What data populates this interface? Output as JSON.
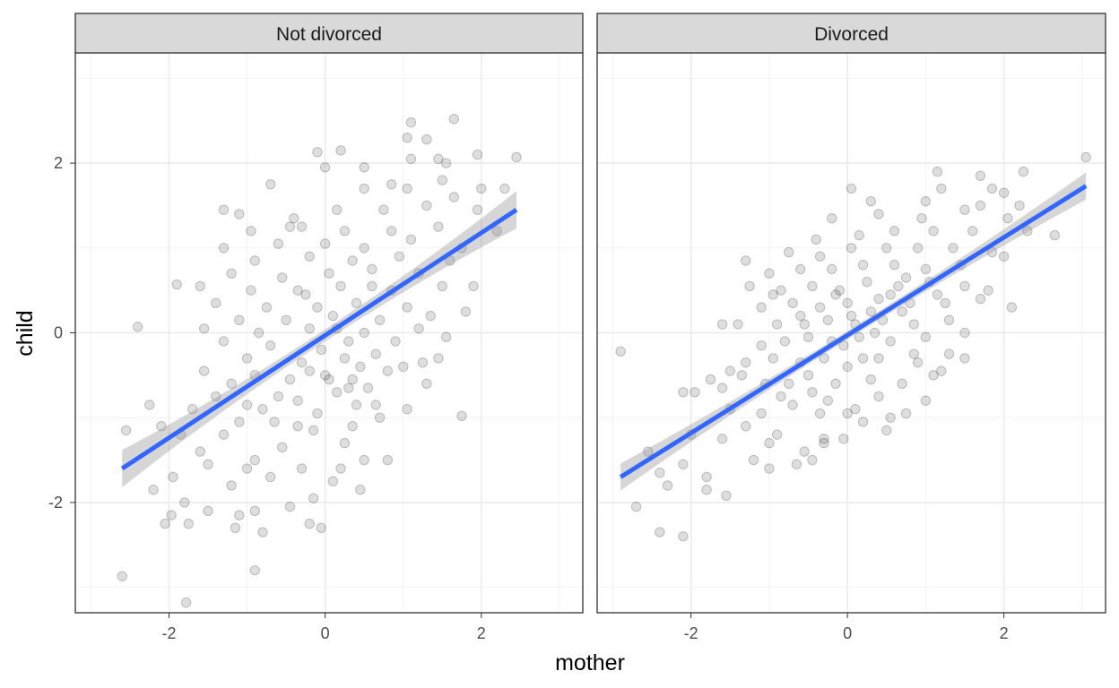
{
  "chart_data": {
    "type": "scatter",
    "xlabel": "mother",
    "ylabel": "child",
    "xlim": [
      -3.2,
      3.3
    ],
    "ylim": [
      -3.3,
      3.3
    ],
    "x_ticks": [
      -2,
      0,
      2
    ],
    "x_tick_labels": [
      "-2",
      "0",
      "2"
    ],
    "y_ticks": [
      -2,
      0,
      2
    ],
    "y_tick_labels": [
      "-2",
      "0",
      "2"
    ],
    "grid": true,
    "legend": "none",
    "colors": {
      "points": "#000000",
      "fit_line": "#3366ff",
      "ribbon": "#999999",
      "strip_background": "#d9d9d9",
      "grid_major": "#ebebeb",
      "grid_minor": "#f2f2f2",
      "panel_border": "#333333"
    },
    "panels": [
      {
        "label": "Not divorced",
        "fit": {
          "x": [
            -2.6,
            2.45
          ],
          "y": [
            -1.6,
            1.45
          ],
          "se_width_ends": 0.22,
          "se_width_center": 0.07
        },
        "points": [
          [
            -2.6,
            -2.87
          ],
          [
            -1.78,
            -3.18
          ],
          [
            -0.9,
            -2.8
          ],
          [
            -1.75,
            -2.25
          ],
          [
            -2.05,
            -2.25
          ],
          [
            -1.15,
            -2.3
          ],
          [
            -0.8,
            -2.35
          ],
          [
            -0.2,
            -2.25
          ],
          [
            -1.1,
            -2.15
          ],
          [
            -0.9,
            -2.1
          ],
          [
            -1.97,
            -2.15
          ],
          [
            -0.45,
            -2.05
          ],
          [
            -0.05,
            -2.3
          ],
          [
            -1.8,
            -2.0
          ],
          [
            -1.5,
            -2.1
          ],
          [
            -0.15,
            -1.95
          ],
          [
            -2.2,
            -1.85
          ],
          [
            -1.2,
            -1.8
          ],
          [
            -0.7,
            -1.7
          ],
          [
            -1.95,
            -1.7
          ],
          [
            0.1,
            -1.75
          ],
          [
            0.45,
            -1.85
          ],
          [
            -1.5,
            -1.55
          ],
          [
            -1.0,
            -1.6
          ],
          [
            -0.3,
            -1.6
          ],
          [
            0.2,
            -1.6
          ],
          [
            -1.6,
            -1.4
          ],
          [
            -0.9,
            -1.5
          ],
          [
            0.5,
            -1.5
          ],
          [
            -1.85,
            -1.2
          ],
          [
            -2.1,
            -1.1
          ],
          [
            -1.3,
            -1.2
          ],
          [
            -0.55,
            -1.35
          ],
          [
            0.25,
            -1.3
          ],
          [
            0.8,
            -1.5
          ],
          [
            -2.55,
            -1.15
          ],
          [
            -1.1,
            -1.05
          ],
          [
            -0.35,
            -1.1
          ],
          [
            0.35,
            -1.1
          ],
          [
            0.7,
            -1.0
          ],
          [
            -1.7,
            -0.9
          ],
          [
            -0.8,
            -0.9
          ],
          [
            -0.1,
            -0.95
          ],
          [
            0.4,
            -0.85
          ],
          [
            1.05,
            -0.9
          ],
          [
            1.75,
            -0.98
          ],
          [
            -2.25,
            -0.85
          ],
          [
            -1.4,
            -0.75
          ],
          [
            -0.6,
            -0.75
          ],
          [
            0.15,
            -0.7
          ],
          [
            0.55,
            -0.65
          ],
          [
            1.3,
            -0.6
          ],
          [
            -1.2,
            -0.6
          ],
          [
            -0.45,
            -0.55
          ],
          [
            0.0,
            -0.5
          ],
          [
            0.35,
            -0.55
          ],
          [
            0.8,
            -0.45
          ],
          [
            -1.55,
            -0.45
          ],
          [
            -0.9,
            -0.5
          ],
          [
            -0.2,
            -0.45
          ],
          [
            0.45,
            -0.4
          ],
          [
            1.0,
            -0.4
          ],
          [
            -1.0,
            -0.3
          ],
          [
            -0.3,
            -0.35
          ],
          [
            0.25,
            -0.3
          ],
          [
            0.65,
            -0.25
          ],
          [
            1.45,
            -0.3
          ],
          [
            -1.3,
            -0.1
          ],
          [
            -0.7,
            -0.15
          ],
          [
            -0.05,
            -0.2
          ],
          [
            0.3,
            -0.1
          ],
          [
            0.9,
            -0.1
          ],
          [
            1.55,
            -0.05
          ],
          [
            -1.55,
            0.05
          ],
          [
            -0.85,
            0.0
          ],
          [
            -0.2,
            0.05
          ],
          [
            0.5,
            0.0
          ],
          [
            1.2,
            0.05
          ],
          [
            -2.4,
            0.07
          ],
          [
            -1.1,
            0.15
          ],
          [
            -0.5,
            0.15
          ],
          [
            0.1,
            0.2
          ],
          [
            0.7,
            0.15
          ],
          [
            1.35,
            0.2
          ],
          [
            -1.4,
            0.35
          ],
          [
            -0.75,
            0.3
          ],
          [
            -0.1,
            0.3
          ],
          [
            0.4,
            0.35
          ],
          [
            1.05,
            0.3
          ],
          [
            1.8,
            0.25
          ],
          [
            -1.6,
            0.55
          ],
          [
            -0.95,
            0.5
          ],
          [
            -0.35,
            0.5
          ],
          [
            0.2,
            0.55
          ],
          [
            0.85,
            0.5
          ],
          [
            1.5,
            0.55
          ],
          [
            -1.9,
            0.57
          ],
          [
            -1.2,
            0.7
          ],
          [
            -0.55,
            0.65
          ],
          [
            0.05,
            0.7
          ],
          [
            0.6,
            0.75
          ],
          [
            1.2,
            0.7
          ],
          [
            1.9,
            0.55
          ],
          [
            -0.9,
            0.85
          ],
          [
            -0.2,
            0.9
          ],
          [
            0.35,
            0.85
          ],
          [
            0.95,
            0.9
          ],
          [
            1.6,
            0.85
          ],
          [
            -1.3,
            1.0
          ],
          [
            -0.6,
            1.05
          ],
          [
            0.0,
            1.05
          ],
          [
            0.5,
            1.0
          ],
          [
            1.1,
            1.1
          ],
          [
            1.75,
            1.0
          ],
          [
            -0.95,
            1.2
          ],
          [
            -0.3,
            1.25
          ],
          [
            0.25,
            1.2
          ],
          [
            0.85,
            1.2
          ],
          [
            1.45,
            1.25
          ],
          [
            2.2,
            1.2
          ],
          [
            -1.1,
            1.4
          ],
          [
            -0.4,
            1.35
          ],
          [
            0.15,
            1.45
          ],
          [
            0.75,
            1.45
          ],
          [
            1.3,
            1.5
          ],
          [
            1.95,
            1.45
          ],
          [
            -1.3,
            1.45
          ],
          [
            -0.7,
            1.75
          ],
          [
            0.5,
            1.7
          ],
          [
            1.05,
            1.7
          ],
          [
            1.5,
            1.8
          ],
          [
            2.0,
            1.7
          ],
          [
            0.0,
            1.95
          ],
          [
            0.85,
            1.75
          ],
          [
            1.65,
            1.6
          ],
          [
            2.3,
            1.7
          ],
          [
            -0.1,
            2.13
          ],
          [
            0.2,
            2.15
          ],
          [
            1.1,
            2.05
          ],
          [
            1.45,
            2.05
          ],
          [
            1.05,
            2.3
          ],
          [
            1.3,
            2.28
          ],
          [
            1.55,
            2.0
          ],
          [
            1.95,
            2.1
          ],
          [
            2.45,
            2.07
          ],
          [
            1.1,
            2.48
          ],
          [
            1.65,
            2.52
          ],
          [
            0.5,
            1.95
          ],
          [
            -0.45,
            1.25
          ],
          [
            0.6,
            0.55
          ],
          [
            -0.15,
            -1.15
          ],
          [
            0.3,
            -0.65
          ],
          [
            -0.65,
            -1.05
          ],
          [
            0.05,
            -0.55
          ],
          [
            -0.35,
            -0.8
          ],
          [
            0.65,
            -0.85
          ],
          [
            1.25,
            -0.35
          ],
          [
            -1.0,
            -0.85
          ],
          [
            0.15,
            0.05
          ],
          [
            -0.25,
            0.45
          ]
        ]
      },
      {
        "label": "Divorced",
        "fit": {
          "x": [
            -2.9,
            3.05
          ],
          "y": [
            -1.7,
            1.73
          ],
          "se_width_ends": 0.16,
          "se_width_center": 0.05
        },
        "points": [
          [
            -2.9,
            -0.22
          ],
          [
            -2.7,
            -2.05
          ],
          [
            -2.1,
            -2.4
          ],
          [
            -2.4,
            -2.35
          ],
          [
            -2.3,
            -1.8
          ],
          [
            -2.4,
            -1.65
          ],
          [
            -2.55,
            -1.4
          ],
          [
            -1.55,
            -1.92
          ],
          [
            -1.8,
            -1.85
          ],
          [
            -2.1,
            -1.55
          ],
          [
            -2.0,
            -1.2
          ],
          [
            -1.6,
            -1.25
          ],
          [
            -1.8,
            -1.7
          ],
          [
            -1.2,
            -1.5
          ],
          [
            -1.0,
            -1.6
          ],
          [
            -0.65,
            -1.55
          ],
          [
            -0.55,
            -1.4
          ],
          [
            -1.3,
            -1.1
          ],
          [
            -0.9,
            -1.2
          ],
          [
            -0.3,
            -1.3
          ],
          [
            -0.45,
            -1.5
          ],
          [
            -0.05,
            -1.25
          ],
          [
            0.2,
            -1.05
          ],
          [
            -1.5,
            -0.9
          ],
          [
            -1.1,
            -0.95
          ],
          [
            -0.7,
            -0.85
          ],
          [
            -0.35,
            -0.95
          ],
          [
            0.1,
            -0.9
          ],
          [
            0.55,
            -1.0
          ],
          [
            0.75,
            -0.95
          ],
          [
            -1.95,
            -0.7
          ],
          [
            -1.6,
            -0.65
          ],
          [
            -1.35,
            -0.5
          ],
          [
            -1.05,
            -0.6
          ],
          [
            -0.75,
            -0.6
          ],
          [
            -0.45,
            -0.7
          ],
          [
            -0.15,
            -0.6
          ],
          [
            0.3,
            -0.55
          ],
          [
            0.7,
            -0.6
          ],
          [
            1.1,
            -0.5
          ],
          [
            -1.75,
            -0.55
          ],
          [
            -1.3,
            -0.35
          ],
          [
            -0.95,
            -0.3
          ],
          [
            -0.6,
            -0.35
          ],
          [
            -0.3,
            -0.3
          ],
          [
            0.0,
            -0.4
          ],
          [
            0.4,
            -0.3
          ],
          [
            0.85,
            -0.25
          ],
          [
            1.3,
            -0.25
          ],
          [
            -1.1,
            -0.15
          ],
          [
            -0.8,
            -0.1
          ],
          [
            -0.5,
            -0.05
          ],
          [
            -0.2,
            -0.1
          ],
          [
            0.15,
            -0.05
          ],
          [
            0.55,
            -0.1
          ],
          [
            1.0,
            -0.05
          ],
          [
            1.5,
            0.0
          ],
          [
            -1.4,
            0.1
          ],
          [
            -0.9,
            0.1
          ],
          [
            -0.55,
            0.1
          ],
          [
            -0.25,
            0.15
          ],
          [
            0.1,
            0.1
          ],
          [
            0.45,
            0.15
          ],
          [
            0.85,
            0.1
          ],
          [
            1.3,
            0.15
          ],
          [
            -1.1,
            0.3
          ],
          [
            -0.7,
            0.35
          ],
          [
            -0.35,
            0.3
          ],
          [
            0.0,
            0.35
          ],
          [
            0.4,
            0.4
          ],
          [
            0.8,
            0.35
          ],
          [
            1.25,
            0.35
          ],
          [
            1.7,
            0.4
          ],
          [
            -1.25,
            0.55
          ],
          [
            -0.85,
            0.5
          ],
          [
            -0.45,
            0.55
          ],
          [
            -0.1,
            0.5
          ],
          [
            0.25,
            0.6
          ],
          [
            0.65,
            0.55
          ],
          [
            1.05,
            0.6
          ],
          [
            1.5,
            0.55
          ],
          [
            -1.0,
            0.7
          ],
          [
            -0.6,
            0.75
          ],
          [
            -0.2,
            0.75
          ],
          [
            0.2,
            0.8
          ],
          [
            0.6,
            0.8
          ],
          [
            1.0,
            0.75
          ],
          [
            1.45,
            0.8
          ],
          [
            -0.75,
            0.95
          ],
          [
            -0.35,
            0.9
          ],
          [
            0.05,
            1.0
          ],
          [
            0.5,
            1.0
          ],
          [
            0.9,
            1.0
          ],
          [
            1.35,
            1.0
          ],
          [
            1.85,
            0.95
          ],
          [
            -0.4,
            1.1
          ],
          [
            0.15,
            1.15
          ],
          [
            0.6,
            1.2
          ],
          [
            1.1,
            1.2
          ],
          [
            1.6,
            1.2
          ],
          [
            -0.2,
            1.35
          ],
          [
            0.4,
            1.4
          ],
          [
            0.95,
            1.35
          ],
          [
            1.5,
            1.45
          ],
          [
            2.05,
            1.35
          ],
          [
            0.3,
            1.55
          ],
          [
            1.0,
            1.55
          ],
          [
            1.7,
            1.5
          ],
          [
            2.2,
            1.5
          ],
          [
            1.2,
            1.7
          ],
          [
            1.85,
            1.7
          ],
          [
            0.05,
            1.7
          ],
          [
            1.15,
            1.9
          ],
          [
            1.7,
            1.85
          ],
          [
            2.0,
            1.65
          ],
          [
            2.25,
            1.9
          ],
          [
            2.65,
            1.15
          ],
          [
            3.05,
            2.07
          ],
          [
            2.3,
            1.2
          ],
          [
            2.0,
            0.9
          ],
          [
            1.8,
            0.5
          ],
          [
            2.1,
            0.3
          ],
          [
            1.5,
            -0.3
          ],
          [
            1.2,
            -0.45
          ],
          [
            0.5,
            -1.15
          ],
          [
            -0.3,
            -1.25
          ],
          [
            0.0,
            -0.95
          ],
          [
            -1.0,
            -1.3
          ],
          [
            -1.3,
            0.85
          ],
          [
            -1.6,
            0.1
          ],
          [
            -0.05,
            -0.15
          ],
          [
            0.35,
            0.0
          ],
          [
            0.7,
            0.25
          ],
          [
            0.3,
            0.25
          ],
          [
            -0.15,
            0.45
          ],
          [
            0.55,
            0.45
          ],
          [
            1.15,
            0.45
          ],
          [
            -0.5,
            -0.5
          ],
          [
            0.2,
            -0.3
          ],
          [
            0.9,
            -0.35
          ],
          [
            -2.1,
            -0.7
          ],
          [
            -1.5,
            -0.45
          ],
          [
            -0.85,
            -0.75
          ],
          [
            -0.25,
            -0.8
          ],
          [
            0.4,
            -0.75
          ],
          [
            1.0,
            -0.8
          ],
          [
            -0.6,
            0.2
          ],
          [
            0.05,
            0.2
          ],
          [
            0.75,
            0.65
          ],
          [
            -0.95,
            0.45
          ]
        ]
      }
    ]
  }
}
